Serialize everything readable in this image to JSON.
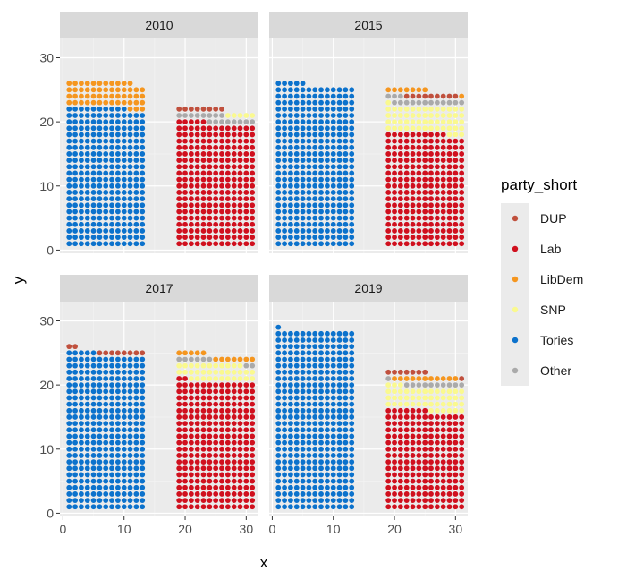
{
  "chart_data": {
    "type": "scatter",
    "subtype": "parliament-waffle",
    "xlabel": "x",
    "ylabel": "y",
    "xlim": [
      -0.5,
      32
    ],
    "ylim": [
      -0.5,
      33
    ],
    "x_ticks": [
      0,
      10,
      20,
      30
    ],
    "x_tick_labels": [
      "0",
      "10",
      "20",
      "30"
    ],
    "y_ticks": [
      0,
      10,
      20,
      30
    ],
    "y_tick_labels": [
      "0",
      "10",
      "20",
      "30"
    ],
    "grid": true,
    "legend": {
      "title": "party_short",
      "position": "right",
      "entries": [
        {
          "name": "DUP",
          "color": "#C0503D"
        },
        {
          "name": "Lab",
          "color": "#D0101E"
        },
        {
          "name": "LibDem",
          "color": "#F5961F"
        },
        {
          "name": "SNP",
          "color": "#FAF98F"
        },
        {
          "name": "Tories",
          "color": "#0C72CC"
        },
        {
          "name": "Other",
          "color": "#AAAAAA"
        }
      ]
    },
    "panels": [
      {
        "title": "2010",
        "blocks": [
          {
            "x_from": 1,
            "x_to": 13,
            "fill_order": [
              "Tories",
              "LibDem"
            ],
            "counts": {
              "Tories": 283,
              "LibDem": 53
            }
          },
          {
            "x_from": 19,
            "x_to": 31,
            "fill_order": [
              "Lab",
              "Other",
              "SNP",
              "DUP"
            ],
            "counts": {
              "Lab": 252,
              "Other": 16,
              "SNP": 5,
              "DUP": 8
            }
          }
        ]
      },
      {
        "title": "2015",
        "blocks": [
          {
            "x_from": 1,
            "x_to": 13,
            "fill_order": [
              "Tories"
            ],
            "counts": {
              "Tories": 330
            }
          },
          {
            "x_from": 19,
            "x_to": 31,
            "fill_order": [
              "Lab",
              "SNP",
              "Other",
              "DUP",
              "LibDem"
            ],
            "counts": {
              "Lab": 231,
              "SNP": 56,
              "Other": 15,
              "DUP": 9,
              "LibDem": 8
            }
          }
        ]
      },
      {
        "title": "2017",
        "blocks": [
          {
            "x_from": 1,
            "x_to": 13,
            "fill_order": [
              "Tories",
              "DUP"
            ],
            "counts": {
              "Tories": 317,
              "DUP": 10
            }
          },
          {
            "x_from": 19,
            "x_to": 31,
            "fill_order": [
              "Lab",
              "SNP",
              "Other",
              "LibDem"
            ],
            "counts": {
              "Lab": 262,
              "SNP": 35,
              "Other": 8,
              "LibDem": 12
            }
          }
        ]
      },
      {
        "title": "2019",
        "blocks": [
          {
            "x_from": 1,
            "x_to": 13,
            "fill_order": [
              "Tories"
            ],
            "counts": {
              "Tories": 365
            }
          },
          {
            "x_from": 19,
            "x_to": 31,
            "fill_order": [
              "Lab",
              "SNP",
              "Other",
              "LibDem",
              "DUP"
            ],
            "counts": {
              "Lab": 202,
              "SNP": 48,
              "Other": 11,
              "LibDem": 11,
              "DUP": 8
            }
          }
        ]
      }
    ]
  }
}
